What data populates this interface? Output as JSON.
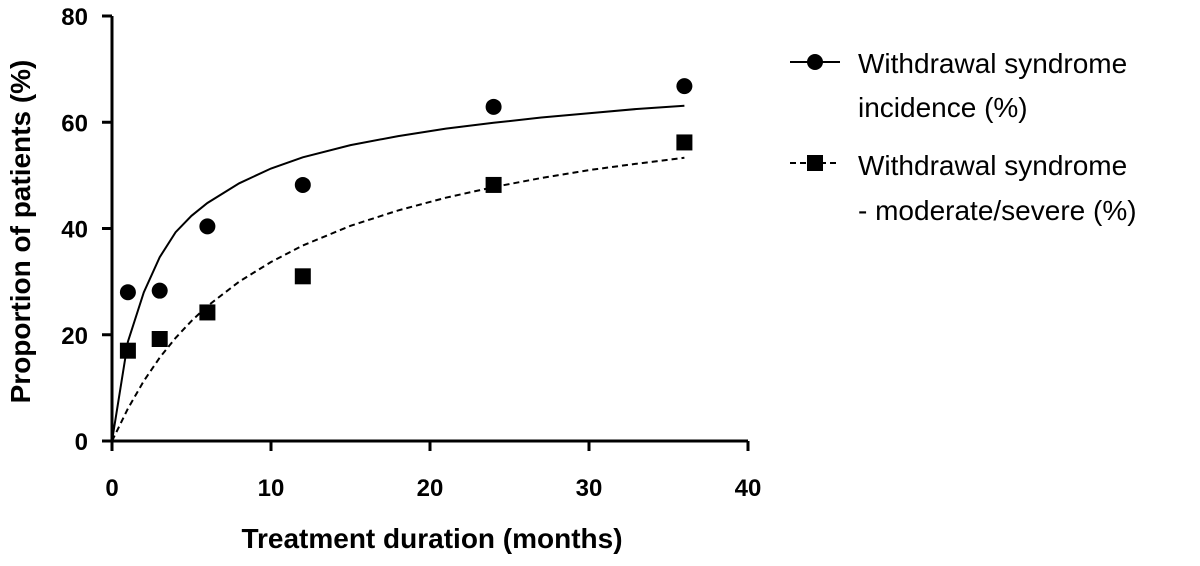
{
  "chart_data": {
    "type": "scatter",
    "title": "",
    "xlabel": "Treatment duration (months)",
    "ylabel": "Proportion of patients (%)",
    "xlim": [
      0,
      40
    ],
    "ylim": [
      0,
      80
    ],
    "xticks": [
      0,
      10,
      20,
      30,
      40
    ],
    "yticks": [
      0,
      20,
      40,
      60,
      80
    ],
    "grid": false,
    "legend_position": "right",
    "series": [
      {
        "name": "Withdrawal syndrome incidence (%)",
        "legend_lines": [
          "Withdrawal syndrome",
          "incidence (%)"
        ],
        "marker": "circle",
        "line_style": "solid",
        "x": [
          1,
          3,
          6,
          12,
          24,
          36
        ],
        "y": [
          28,
          28.3,
          40.4,
          48.2,
          62.9,
          66.8
        ],
        "fit_x": [
          0,
          1,
          2,
          3,
          4,
          5,
          6,
          8,
          10,
          12,
          15,
          18,
          21,
          24,
          27,
          30,
          33,
          36
        ],
        "fit_y": [
          0,
          18.7,
          28.0,
          34.6,
          39.3,
          42.4,
          44.8,
          48.5,
          51.3,
          53.4,
          55.7,
          57.4,
          58.8,
          59.9,
          60.9,
          61.7,
          62.5,
          63.1
        ]
      },
      {
        "name": "Withdrawal syndrome - moderate/severe (%)",
        "legend_lines": [
          "Withdrawal syndrome",
          "- moderate/severe (%)"
        ],
        "marker": "square",
        "line_style": "dashed",
        "x": [
          1,
          3,
          6,
          12,
          24,
          36
        ],
        "y": [
          17,
          19.2,
          24.2,
          31,
          48.2,
          56.2
        ],
        "fit_x": [
          0,
          1,
          2,
          3,
          4,
          5,
          6,
          8,
          10,
          12,
          15,
          18,
          21,
          24,
          27,
          30,
          33,
          36
        ],
        "fit_y": [
          0,
          6.1,
          11.3,
          15.7,
          19.4,
          22.6,
          25.4,
          30.0,
          33.7,
          36.8,
          40.5,
          43.4,
          45.8,
          47.8,
          49.5,
          51.0,
          52.2,
          53.3
        ]
      }
    ]
  }
}
